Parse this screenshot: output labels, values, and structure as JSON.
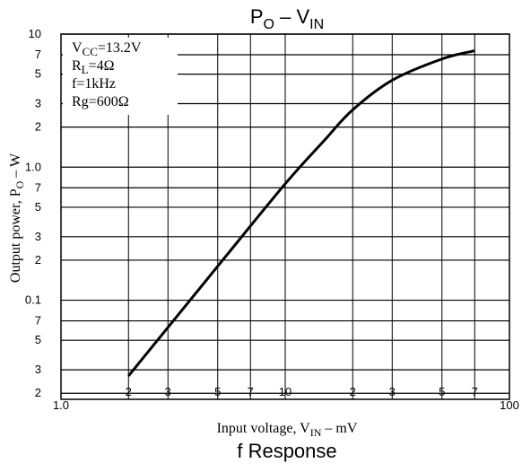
{
  "chart_data": {
    "type": "line",
    "title": {
      "main": "P",
      "sub": "O",
      "mid": " – V",
      "sub2": "IN"
    },
    "subtitle": "f Response",
    "y_label": {
      "main": "Output power, P",
      "sub": "O",
      "rest": " – W"
    },
    "x_label": {
      "main": "Input voltage, V",
      "sub": "IN",
      "rest": " – mV"
    },
    "annotations": [
      {
        "main": "V",
        "sub": "CC",
        "rest": "=13.2V"
      },
      {
        "main": "R",
        "sub": "L",
        "rest": "=4Ω"
      },
      {
        "main": "f=1kHz"
      },
      {
        "main": "Rg=600Ω"
      }
    ],
    "xscale": "log",
    "yscale": "log",
    "grid": true,
    "xlim": [
      1,
      100
    ],
    "ylim": [
      0.018,
      10
    ],
    "xticks": [
      {
        "value": 1,
        "label": "1.0"
      },
      2,
      3,
      5,
      7,
      10,
      {
        "value": 20,
        "label": "2"
      },
      {
        "value": 30,
        "label": "3"
      },
      {
        "value": 50,
        "label": "5"
      },
      {
        "value": 70,
        "label": "7"
      },
      100
    ],
    "yticks": [
      {
        "value": 0.02,
        "label": "2"
      },
      {
        "value": 0.03,
        "label": "3"
      },
      {
        "value": 0.05,
        "label": "5"
      },
      {
        "value": 0.07,
        "label": "7"
      },
      0.1,
      {
        "value": 0.2,
        "label": "2"
      },
      {
        "value": 0.3,
        "label": "3"
      },
      {
        "value": 0.5,
        "label": "5"
      },
      {
        "value": 0.7,
        "label": "7"
      },
      {
        "value": 1,
        "label": "1.0"
      },
      2,
      3,
      5,
      7,
      10
    ],
    "series": [
      {
        "color": "#000000",
        "x": [
          2,
          5,
          10,
          15,
          20,
          30,
          50,
          70
        ],
        "values": [
          0.027,
          0.18,
          0.75,
          1.6,
          2.7,
          4.5,
          6.5,
          7.5
        ]
      }
    ]
  }
}
